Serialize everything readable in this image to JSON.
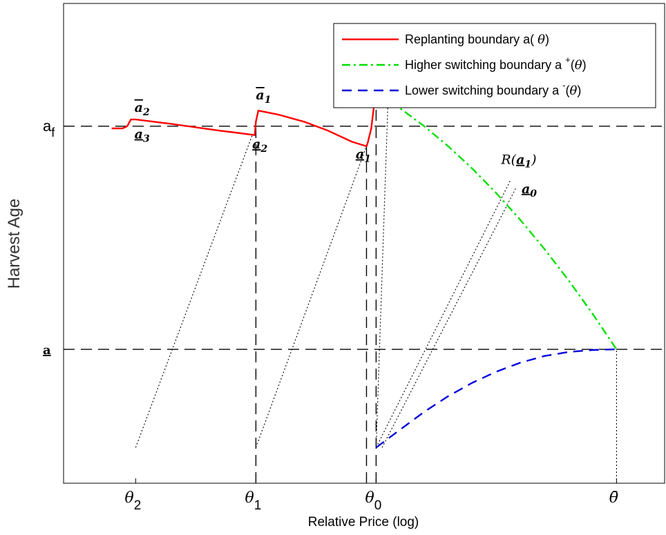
{
  "chart_data": {
    "type": "line",
    "xlabel": "Relative Price (log)",
    "ylabel": "Harvest Age",
    "x_ticks": [
      {
        "at": 0.6,
        "main": "θ",
        "sub": "2"
      },
      {
        "at": 1.6,
        "main": "θ",
        "sub": "1"
      },
      {
        "at": 2.6,
        "main": "θ",
        "sub": "0"
      },
      {
        "at": 4.6,
        "main": "θ̄",
        "sub": ""
      }
    ],
    "y_ticks": [
      {
        "at": 1.0,
        "main": "a",
        "sub": "f",
        "underline": false
      },
      {
        "at": 0.0,
        "main": "a",
        "sub": "",
        "underline": true
      }
    ],
    "xlim": [
      0,
      5
    ],
    "ylim": [
      -0.6,
      1.55
    ],
    "grid": false,
    "legend": {
      "placement": "top-right",
      "entries": [
        {
          "label": "Replanting boundary a( ",
          "sym": "θ",
          "tail": ")",
          "sup": "",
          "color": "#ff0000",
          "dash": "solid"
        },
        {
          "label": "Higher switching boundary a ",
          "sym": "θ",
          "tail": ")",
          "sup": "+",
          "color": "#00e000",
          "dash": "dashdot"
        },
        {
          "label": "Lower switching boundary a ",
          "sym": "θ",
          "tail": ")",
          "sup": "-",
          "color": "#0000dd",
          "dash": "dashed"
        }
      ]
    },
    "series": [
      {
        "name": "Replanting boundary a(θ)",
        "color": "#ff0000",
        "style": "solid",
        "x": [
          0.4,
          0.49,
          0.53,
          0.56,
          0.6,
          0.75,
          0.9,
          1.1,
          1.3,
          1.45,
          1.59,
          1.6,
          1.62,
          1.8,
          2.0,
          2.2,
          2.4,
          2.52,
          2.53,
          2.56,
          2.58,
          2.59
        ],
        "y": [
          0.99,
          0.99,
          1.0,
          1.03,
          1.03,
          1.02,
          1.01,
          0.995,
          0.98,
          0.97,
          0.96,
          1.02,
          1.07,
          1.05,
          1.02,
          0.98,
          0.93,
          0.91,
          0.925,
          0.99,
          1.08,
          1.16
        ]
      },
      {
        "name": "Higher switching boundary a+(θ)",
        "color": "#00e000",
        "style": "dashdot",
        "x": [
          2.6,
          2.8,
          3.0,
          3.2,
          3.4,
          3.6,
          3.8,
          4.0,
          4.2,
          4.4,
          4.6
        ],
        "y": [
          1.15,
          1.08,
          1.0,
          0.91,
          0.81,
          0.7,
          0.58,
          0.45,
          0.31,
          0.16,
          0.0
        ]
      },
      {
        "name": "Lower switching boundary a-(θ)",
        "color": "#0000dd",
        "style": "dashed",
        "x": [
          2.6,
          2.8,
          3.0,
          3.2,
          3.4,
          3.6,
          3.8,
          4.0,
          4.2,
          4.4,
          4.6
        ],
        "y": [
          -0.44,
          -0.36,
          -0.28,
          -0.21,
          -0.15,
          -0.1,
          -0.06,
          -0.03,
          -0.012,
          -0.003,
          0.0
        ]
      }
    ],
    "reference_lines": {
      "horizontal_dashed": [
        1.0,
        0.0
      ],
      "vertical_dashed": [
        {
          "x": 1.6,
          "y_top": 1.02
        },
        {
          "x": 2.52,
          "y_top": 0.91
        },
        {
          "x": 2.6,
          "y_top": 1.15
        }
      ],
      "vertical_dotted": [
        {
          "x": 4.6,
          "y_top": 0.0
        }
      ],
      "dotted_segments": [
        {
          "x1": 0.6,
          "y1": -0.44,
          "x2": 1.57,
          "y2": 0.96
        },
        {
          "x1": 1.6,
          "y1": -0.44,
          "x2": 2.52,
          "y2": 0.91
        },
        {
          "x1": 2.6,
          "y1": -0.44,
          "x2": 3.72,
          "y2": 0.76
        },
        {
          "x1": 2.65,
          "y1": -0.44,
          "x2": 3.76,
          "y2": 0.72
        },
        {
          "x1": 2.6,
          "y1": -0.44,
          "x2": 2.7,
          "y2": 1.13
        }
      ]
    },
    "annotations": [
      {
        "text": "a",
        "sub": "2",
        "bar": "over",
        "x": 0.59,
        "y": 1.065
      },
      {
        "text": "a",
        "sub": "3",
        "bar": "under",
        "x": 0.59,
        "y": 0.945
      },
      {
        "text": "a",
        "sub": "1",
        "bar": "over",
        "x": 1.6,
        "y": 1.12
      },
      {
        "text": "a",
        "sub": "2",
        "bar": "under",
        "x": 1.57,
        "y": 0.9
      },
      {
        "text": "a",
        "sub": "0",
        "bar": "over",
        "x": 2.45,
        "y": 1.18
      },
      {
        "text": "a",
        "sub": "1",
        "bar": "under",
        "x": 2.43,
        "y": 0.855
      },
      {
        "text": "R(",
        "inner": "a",
        "sub": "1",
        "bar": "over",
        "tail": ")",
        "x": 2.64,
        "y": 1.15
      },
      {
        "text": "R(",
        "inner": "a",
        "sub": "1",
        "bar": "under",
        "tail": ")",
        "x": 3.64,
        "y": 0.83
      },
      {
        "text": "a",
        "sub": "0",
        "bar": "under",
        "x": 3.81,
        "y": 0.7
      }
    ]
  }
}
